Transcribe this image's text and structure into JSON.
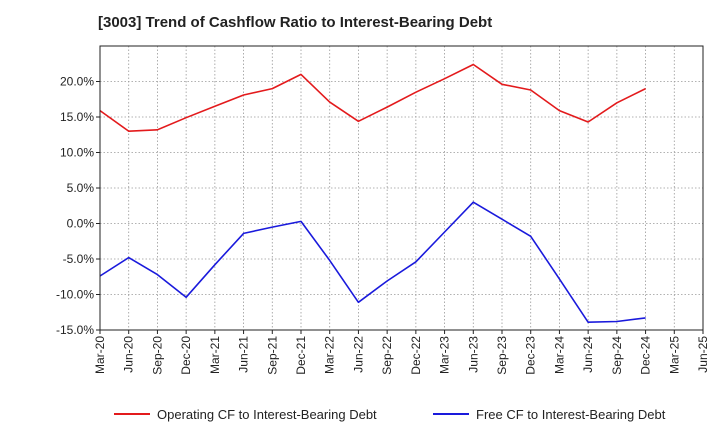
{
  "chart_data": {
    "type": "line",
    "title": "[3003]  Trend of Cashflow Ratio to Interest-Bearing Debt",
    "x": [
      "Mar-20",
      "Jun-20",
      "Sep-20",
      "Dec-20",
      "Mar-21",
      "Jun-21",
      "Sep-21",
      "Dec-21",
      "Mar-22",
      "Jun-22",
      "Sep-22",
      "Dec-22",
      "Mar-23",
      "Jun-23",
      "Sep-23",
      "Dec-23",
      "Mar-24",
      "Jun-24",
      "Sep-24",
      "Dec-24",
      "Mar-25",
      "Jun-25"
    ],
    "ylim": [
      -15,
      25
    ],
    "yticks": [
      -15,
      -10,
      -5,
      0,
      5,
      10,
      15,
      20
    ],
    "ytick_labels": [
      "-15.0%",
      "-10.0%",
      "-5.0%",
      "0.0%",
      "5.0%",
      "10.0%",
      "15.0%",
      "20.0%"
    ],
    "grid": true,
    "legend_position": "bottom",
    "series": [
      {
        "name": "Operating CF to Interest-Bearing Debt",
        "color": "#e31a1c",
        "values": [
          15.9,
          13.0,
          13.2,
          14.9,
          16.5,
          18.1,
          19.0,
          21.0,
          17.1,
          14.4,
          16.4,
          18.5,
          20.4,
          22.4,
          19.6,
          18.8,
          15.9,
          14.3,
          17.0,
          19.0,
          null,
          null
        ]
      },
      {
        "name": "Free CF to Interest-Bearing Debt",
        "color": "#1a1adc",
        "values": [
          -7.4,
          -4.8,
          -7.2,
          -10.4,
          -5.8,
          -1.4,
          -0.5,
          0.3,
          -5.2,
          -11.1,
          -8.1,
          -5.4,
          -1.2,
          3.0,
          0.6,
          -1.8,
          -7.8,
          -13.9,
          -13.8,
          -13.3,
          null,
          null
        ]
      }
    ]
  }
}
